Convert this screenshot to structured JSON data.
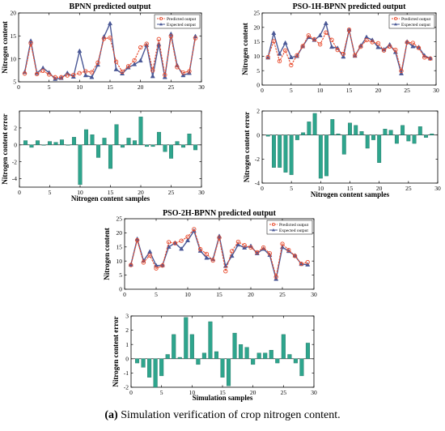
{
  "caption": {
    "tag": "(a)",
    "text": " Simulation verification of crop nitrogen content."
  },
  "colors": {
    "predicted": "#e84a2c",
    "expected": "#4a5896",
    "bar": "#2ea58d",
    "bar_edge": "#1d6f5e",
    "axis": "#000000"
  },
  "chart_data": [
    {
      "type": "line",
      "title": "BPNN predicted output",
      "xlabel": "",
      "ylabel": "Nitrogen content",
      "xlim": [
        0,
        30
      ],
      "ylim": [
        5,
        20
      ],
      "xticks": [
        0,
        5,
        10,
        15,
        20,
        25,
        30
      ],
      "yticks": [
        5,
        10,
        15,
        20
      ],
      "legend": "top-right",
      "series": [
        {
          "name": "Predicted output",
          "marker": "circle",
          "x": [
            1,
            2,
            3,
            4,
            5,
            6,
            7,
            8,
            9,
            10,
            11,
            12,
            13,
            14,
            15,
            16,
            17,
            18,
            19,
            20,
            21,
            22,
            23,
            24,
            25,
            26,
            27,
            28,
            29
          ],
          "y": [
            6.8,
            13.4,
            6.7,
            7.4,
            6.6,
            6.0,
            6.0,
            6.4,
            6.5,
            6.9,
            7.3,
            7.1,
            9.2,
            14.4,
            14.6,
            9.4,
            7.2,
            8.4,
            9.7,
            12.5,
            13.3,
            7.5,
            14.3,
            6.5,
            14.9,
            8.2,
            7.0,
            7.3,
            14.5
          ]
        },
        {
          "name": "Expected output",
          "marker": "triangle",
          "x": [
            1,
            2,
            3,
            4,
            5,
            6,
            7,
            8,
            9,
            10,
            11,
            12,
            13,
            14,
            15,
            16,
            17,
            18,
            19,
            20,
            21,
            22,
            23,
            24,
            25,
            26,
            27,
            28,
            29
          ],
          "y": [
            7.1,
            13.9,
            6.9,
            8.0,
            7.0,
            5.6,
            5.8,
            6.9,
            6.1,
            11.7,
            6.4,
            6.0,
            8.7,
            14.8,
            17.7,
            7.7,
            6.8,
            8.1,
            8.8,
            9.6,
            13.0,
            6.2,
            13.2,
            6.0,
            15.4,
            8.6,
            6.4,
            6.9,
            14.9
          ]
        }
      ]
    },
    {
      "type": "line",
      "title": "PSO-1H-BPNN predicted output",
      "xlabel": "",
      "ylabel": "Nitrogen content",
      "xlim": [
        0,
        30
      ],
      "ylim": [
        0,
        25
      ],
      "xticks": [
        0,
        5,
        10,
        15,
        20,
        25,
        30
      ],
      "yticks": [
        0,
        5,
        10,
        15,
        20,
        25
      ],
      "legend": "top-right",
      "series": [
        {
          "name": "Predicted output",
          "marker": "circle",
          "x": [
            1,
            2,
            3,
            4,
            5,
            6,
            7,
            8,
            9,
            10,
            11,
            12,
            13,
            14,
            15,
            16,
            17,
            18,
            19,
            20,
            21,
            22,
            23,
            24,
            25,
            26,
            27,
            28,
            29
          ],
          "y": [
            9.7,
            15.2,
            8.3,
            12.0,
            6.9,
            10.3,
            13.5,
            17.2,
            15.9,
            14.1,
            18.2,
            15.7,
            12.2,
            10.8,
            19.2,
            10.3,
            13.3,
            15.6,
            14.9,
            14.5,
            12.0,
            13.4,
            12.2,
            4.9,
            14.8,
            14.6,
            12.9,
            9.6,
            9.2
          ]
        },
        {
          "name": "Expected output",
          "marker": "triangle",
          "x": [
            1,
            2,
            3,
            4,
            5,
            6,
            7,
            8,
            9,
            10,
            11,
            12,
            13,
            14,
            15,
            16,
            17,
            18,
            19,
            20,
            21,
            22,
            23,
            24,
            25,
            26,
            27,
            28,
            29
          ],
          "y": [
            9.5,
            18.0,
            10.8,
            14.6,
            9.6,
            10.0,
            13.4,
            16.6,
            15.6,
            17.2,
            21.4,
            13.2,
            12.8,
            9.8,
            19.1,
            10.1,
            13.6,
            16.6,
            15.6,
            13.1,
            12.3,
            14.0,
            11.4,
            4.0,
            15.0,
            13.4,
            13.1,
            10.2,
            9.2
          ]
        }
      ]
    },
    {
      "type": "bar",
      "title": "",
      "xlabel": "Nitrogen content samples",
      "ylabel": "Nitrogen content error",
      "xlim": [
        0,
        30
      ],
      "ylim": [
        -5,
        4
      ],
      "xticks": [
        0,
        5,
        10,
        15,
        20,
        25,
        30
      ],
      "yticks": [
        -4,
        -2,
        0,
        2
      ],
      "x": [
        1,
        2,
        3,
        4,
        5,
        6,
        7,
        8,
        9,
        10,
        11,
        12,
        13,
        14,
        15,
        16,
        17,
        18,
        19,
        20,
        21,
        22,
        23,
        24,
        25,
        26,
        27,
        28,
        29
      ],
      "values": [
        0.5,
        -0.3,
        0.5,
        0.0,
        0.4,
        0.3,
        0.6,
        0.0,
        0.9,
        -4.7,
        1.8,
        1.2,
        -1.5,
        0.8,
        -2.8,
        2.4,
        -0.3,
        0.8,
        0.5,
        3.3,
        -0.2,
        -0.2,
        1.5,
        -0.8,
        -1.6,
        0.4,
        -0.3,
        1.3,
        -0.6
      ]
    },
    {
      "type": "bar",
      "title": "",
      "xlabel": "Nitrogen content samples",
      "ylabel": "Nitrogen content error",
      "xlim": [
        0,
        30
      ],
      "ylim": [
        -4,
        2
      ],
      "xticks": [
        0,
        5,
        10,
        15,
        20,
        25,
        30
      ],
      "yticks": [
        -4,
        -2,
        0,
        2
      ],
      "x": [
        1,
        2,
        3,
        4,
        5,
        6,
        7,
        8,
        9,
        10,
        11,
        12,
        13,
        14,
        15,
        16,
        17,
        18,
        19,
        20,
        21,
        22,
        23,
        24,
        25,
        26,
        27,
        28,
        29
      ],
      "values": [
        -0.1,
        -2.7,
        -2.7,
        -3.1,
        -3.3,
        -0.4,
        0.2,
        1.1,
        1.8,
        -3.6,
        -3.4,
        1.3,
        0.1,
        -1.6,
        1.0,
        0.8,
        0.3,
        -1.1,
        -0.4,
        -2.3,
        0.5,
        0.4,
        -0.7,
        0.8,
        -0.5,
        -0.7,
        0.7,
        -0.2,
        0.1
      ]
    },
    {
      "type": "line",
      "title": "PSO-2H-BPNN predicted output",
      "xlabel": "",
      "ylabel": "Nitrogen content",
      "xlim": [
        0,
        30
      ],
      "ylim": [
        0,
        25
      ],
      "xticks": [
        0,
        5,
        10,
        15,
        20,
        25,
        30
      ],
      "yticks": [
        0,
        5,
        10,
        15,
        20,
        25
      ],
      "legend": "top-right",
      "series": [
        {
          "name": "Predicted output",
          "marker": "circle",
          "x": [
            1,
            2,
            3,
            4,
            5,
            6,
            7,
            8,
            9,
            10,
            11,
            12,
            13,
            14,
            15,
            16,
            17,
            18,
            19,
            20,
            21,
            22,
            23,
            24,
            25,
            26,
            27,
            28,
            29
          ],
          "y": [
            8.6,
            17.4,
            9.5,
            12.0,
            7.4,
            8.4,
            16.7,
            16.3,
            17.2,
            18.6,
            21.3,
            14.2,
            12.5,
            10.2,
            18.3,
            6.4,
            13.5,
            16.8,
            15.6,
            14.8,
            13.1,
            14.8,
            12.7,
            4.4,
            16.1,
            13.9,
            11.8,
            9.0,
            9.6
          ]
        },
        {
          "name": "Expected output",
          "marker": "triangle",
          "x": [
            1,
            2,
            3,
            4,
            5,
            6,
            7,
            8,
            9,
            10,
            11,
            12,
            13,
            14,
            15,
            16,
            17,
            18,
            19,
            20,
            21,
            22,
            23,
            24,
            25,
            26,
            27,
            28,
            29
          ],
          "y": [
            8.7,
            17.8,
            10.1,
            13.3,
            8.4,
            8.5,
            15.0,
            16.4,
            14.3,
            17.3,
            20.7,
            13.6,
            11.1,
            10.6,
            18.8,
            8.2,
            11.8,
            15.8,
            14.7,
            15.3,
            12.7,
            14.3,
            12.1,
            3.6,
            14.9,
            13.5,
            11.9,
            8.9,
            8.7
          ]
        }
      ]
    },
    {
      "type": "bar",
      "title": "",
      "xlabel": "Simulation samples",
      "ylabel": "Nitrogen content error",
      "xlim": [
        0,
        30
      ],
      "ylim": [
        -2,
        3
      ],
      "xticks": [
        0,
        5,
        10,
        15,
        20,
        25,
        30
      ],
      "yticks": [
        -2,
        -1,
        0,
        1,
        2,
        3
      ],
      "x": [
        1,
        2,
        3,
        4,
        5,
        6,
        7,
        8,
        9,
        10,
        11,
        12,
        13,
        14,
        15,
        16,
        17,
        18,
        19,
        20,
        21,
        22,
        23,
        24,
        25,
        26,
        27,
        28,
        29
      ],
      "values": [
        -0.3,
        -0.6,
        -1.3,
        -2.0,
        -1.2,
        0.3,
        1.7,
        0.1,
        2.9,
        1.7,
        -0.4,
        0.4,
        2.6,
        0.5,
        -1.3,
        -1.9,
        1.8,
        1.0,
        0.8,
        -0.4,
        0.4,
        0.4,
        0.6,
        -0.3,
        1.7,
        0.3,
        -0.3,
        -1.2,
        1.1
      ]
    }
  ]
}
